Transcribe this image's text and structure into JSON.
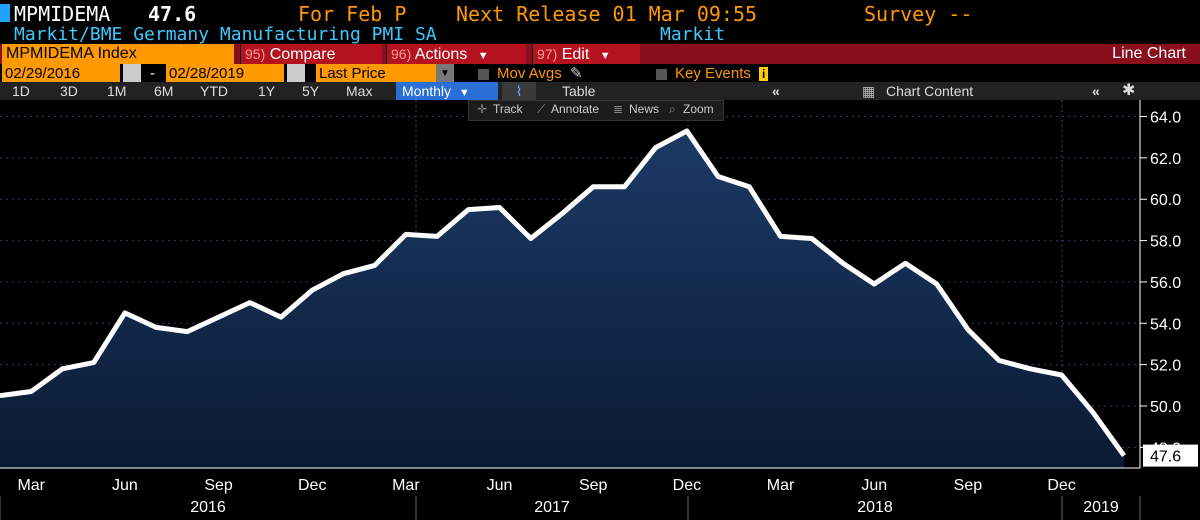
{
  "header": {
    "ticker": "MPMIDEMA",
    "value": "47.6",
    "for_period": "For Feb P",
    "next_release": "Next Release 01 Mar 09:55",
    "survey": "Survey --",
    "description": "Markit/BME Germany Manufacturing PMI SA",
    "source": "Markit"
  },
  "toolbar": {
    "security": "MPMIDEMA Index",
    "compare_num": "95)",
    "compare": "Compare",
    "actions_num": "96)",
    "actions": "Actions",
    "edit_num": "97)",
    "edit": "Edit",
    "chart_type": "Line Chart"
  },
  "range": {
    "start_date": "02/29/2016",
    "separator": "-",
    "end_date": "02/28/2019",
    "field": "Last Price",
    "mov_avgs": "Mov Avgs",
    "key_events": "Key Events"
  },
  "periods": {
    "items": [
      "1D",
      "3D",
      "1M",
      "6M",
      "YTD",
      "1Y",
      "5Y",
      "Max"
    ],
    "frequency": "Monthly",
    "table": "Table",
    "chart_content": "Chart Content"
  },
  "tools": {
    "track": "Track",
    "annotate": "Annotate",
    "news": "News",
    "zoom": "Zoom"
  },
  "colors": {
    "line": "#ffffff",
    "area_top": "#1c3a66",
    "area_bottom": "#0b1a33",
    "header_accent": "#ff9900",
    "desc_color": "#3fc8ff",
    "toolbar_red": "#8a0f1d"
  },
  "chart_data": {
    "type": "area",
    "title": "",
    "x": [
      "2016-02",
      "2016-03",
      "2016-04",
      "2016-05",
      "2016-06",
      "2016-07",
      "2016-08",
      "2016-09",
      "2016-10",
      "2016-11",
      "2016-12",
      "2017-01",
      "2017-02",
      "2017-03",
      "2017-04",
      "2017-05",
      "2017-06",
      "2017-07",
      "2017-08",
      "2017-09",
      "2017-10",
      "2017-11",
      "2017-12",
      "2018-01",
      "2018-02",
      "2018-03",
      "2018-04",
      "2018-05",
      "2018-06",
      "2018-07",
      "2018-08",
      "2018-09",
      "2018-10",
      "2018-11",
      "2018-12",
      "2019-01",
      "2019-02"
    ],
    "values": [
      50.5,
      50.7,
      51.8,
      52.1,
      54.5,
      53.8,
      53.6,
      54.3,
      55.0,
      54.3,
      55.6,
      56.4,
      56.8,
      58.3,
      58.2,
      59.5,
      59.6,
      58.1,
      59.3,
      60.6,
      60.6,
      62.5,
      63.3,
      61.1,
      60.6,
      58.2,
      58.1,
      56.9,
      55.9,
      56.9,
      55.9,
      53.7,
      52.2,
      51.8,
      51.5,
      49.7,
      47.6
    ],
    "last_value_label": "47.6",
    "ylim": [
      47.0,
      64.8
    ],
    "y_ticks": [
      "48.0",
      "50.0",
      "52.0",
      "54.0",
      "56.0",
      "58.0",
      "60.0",
      "62.0",
      "64.0"
    ],
    "x_month_labels": [
      "Mar",
      "Jun",
      "Sep",
      "Dec",
      "Mar",
      "Jun",
      "Sep",
      "Dec",
      "Mar",
      "Jun",
      "Sep",
      "Dec"
    ],
    "x_year_labels": [
      "2016",
      "2017",
      "2018",
      "2019"
    ],
    "grid": true
  }
}
